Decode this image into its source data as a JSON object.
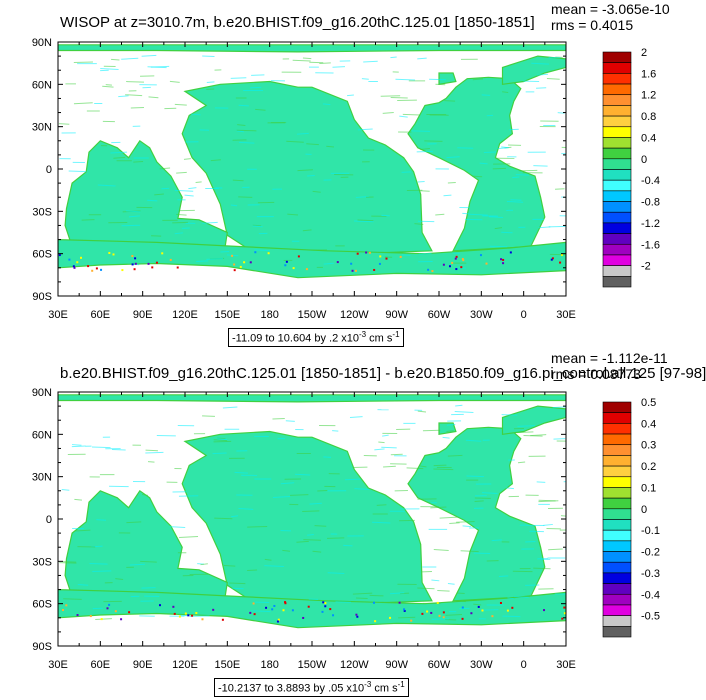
{
  "chart_data": [
    {
      "type": "heatmap",
      "title": "WISOP at z=3010.7m, b.e20.BHIST.f09_g16.20thC.125.01 [1850-1851]",
      "mean_text": "mean = -3.065e-10",
      "rms_text": "rms = 0.4015",
      "range_text": "-11.09 to 10.604 by .2 x10",
      "range_exp": "-3",
      "range_units": " cm s",
      "range_units_exp": "-1",
      "x_ticks": [
        "30E",
        "60E",
        "90E",
        "120E",
        "150E",
        "180",
        "150W",
        "120W",
        "90W",
        "60W",
        "30W",
        "0",
        "30E"
      ],
      "y_ticks": [
        "90N",
        "60N",
        "30N",
        "0",
        "30S",
        "60S",
        "90S"
      ],
      "colorbar_labels": [
        "2",
        "1.6",
        "1.2",
        "0.8",
        "0.4",
        "0",
        "-0.4",
        "-0.8",
        "-1.2",
        "-1.6",
        "-2"
      ],
      "colorbar_colors": [
        "#A00000",
        "#E00000",
        "#FF3000",
        "#FF6A00",
        "#FF9030",
        "#FFB030",
        "#FFD040",
        "#FFFF00",
        "#A0E030",
        "#40D040",
        "#30E090",
        "#20E0C0",
        "#40FFFF",
        "#00C8FF",
        "#0090FF",
        "#0050FF",
        "#0000E0",
        "#6000C0",
        "#A000C0",
        "#E000E0",
        "#C8C8C8",
        "#606060"
      ]
    },
    {
      "type": "heatmap",
      "title": "b.e20.BHIST.f09_g16.20thC.125.01 [1850-1851] - b.e20.B1850.f09_g16.pi_control.all.125 [97-98]",
      "mean_text": "mean = -1.112e-11",
      "rms_text": "rms = 0.08773",
      "range_text": "-10.2137 to 3.8893 by .05 x10",
      "range_exp": "-3",
      "range_units": " cm s",
      "range_units_exp": "-1",
      "x_ticks": [
        "30E",
        "60E",
        "90E",
        "120E",
        "150E",
        "180",
        "150W",
        "120W",
        "90W",
        "60W",
        "30W",
        "0",
        "30E"
      ],
      "y_ticks": [
        "90N",
        "60N",
        "30N",
        "0",
        "30S",
        "60S",
        "90S"
      ],
      "colorbar_labels": [
        "0.5",
        "0.4",
        "0.3",
        "0.2",
        "0.1",
        "0",
        "-0.1",
        "-0.2",
        "-0.3",
        "-0.4",
        "-0.5"
      ],
      "colorbar_colors": [
        "#A00000",
        "#E00000",
        "#FF3000",
        "#FF6A00",
        "#FF9030",
        "#FFB030",
        "#FFD040",
        "#FFFF00",
        "#A0E030",
        "#40D040",
        "#30E090",
        "#20E0C0",
        "#40FFFF",
        "#00C8FF",
        "#0090FF",
        "#0050FF",
        "#0000E0",
        "#6000C0",
        "#A000C0",
        "#E000E0",
        "#C8C8C8",
        "#606060"
      ]
    }
  ]
}
